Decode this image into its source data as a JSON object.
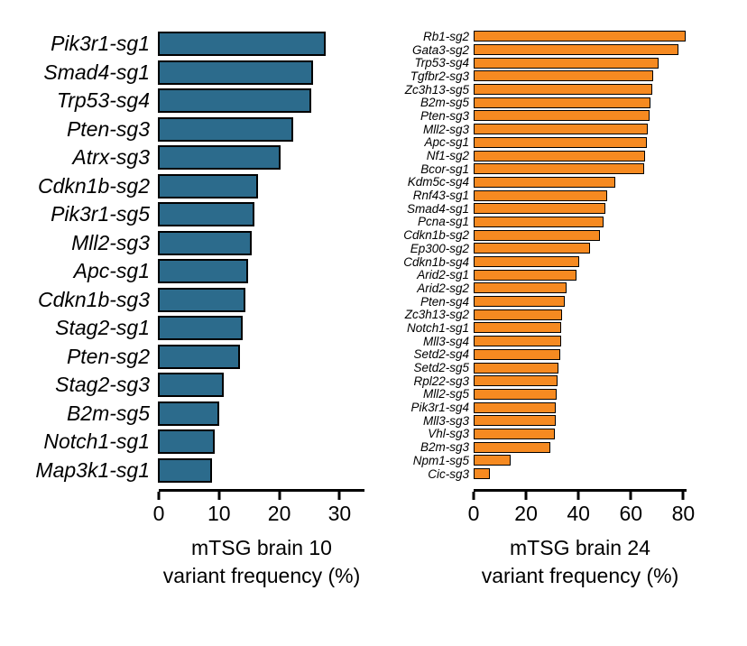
{
  "chart_data": [
    {
      "type": "bar",
      "orientation": "horizontal",
      "xlabel_line1": "mTSG brain 10",
      "xlabel_line2": "variant frequency (%)",
      "bar_color": "#2C6B8C",
      "x_ticks": [
        0,
        10,
        20,
        30
      ],
      "xlim": [
        0,
        34
      ],
      "grid": false,
      "categories": [
        "Pik3r1-sg1",
        "Smad4-sg1",
        "Trp53-sg4",
        "Pten-sg3",
        "Atrx-sg3",
        "Cdkn1b-sg2",
        "Pik3r1-sg5",
        "Mll2-sg3",
        "Apc-sg1",
        "Cdkn1b-sg3",
        "Stag2-sg1",
        "Pten-sg2",
        "Stag2-sg3",
        "B2m-sg5",
        "Notch1-sg1",
        "Map3k1-sg1"
      ],
      "values": [
        27.9,
        25.7,
        25.4,
        22.4,
        20.4,
        16.6,
        16.0,
        15.6,
        14.9,
        14.5,
        14.0,
        13.6,
        10.9,
        10.2,
        9.4,
        9.0
      ]
    },
    {
      "type": "bar",
      "orientation": "horizontal",
      "xlabel_line1": "mTSG brain 24",
      "xlabel_line2": "variant frequency (%)",
      "bar_color": "#F68A21",
      "x_ticks": [
        0,
        20,
        40,
        60,
        80
      ],
      "xlim": [
        0,
        81
      ],
      "grid": false,
      "categories": [
        "Rb1-sg2",
        "Gata3-sg2",
        "Trp53-sg4",
        "Tgfbr2-sg3",
        "Zc3h13-sg5",
        "B2m-sg5",
        "Pten-sg3",
        "Mll2-sg3",
        "Apc-sg1",
        "Nf1-sg2",
        "Bcor-sg1",
        "Kdm5c-sg4",
        "Rnf43-sg1",
        "Smad4-sg1",
        "Pcna-sg1",
        "Cdkn1b-sg2",
        "Ep300-sg2",
        "Cdkn1b-sg4",
        "Arid2-sg1",
        "Arid2-sg2",
        "Pten-sg4",
        "Zc3h13-sg2",
        "Notch1-sg1",
        "Mll3-sg4",
        "Setd2-sg4",
        "Setd2-sg5",
        "Rpl22-sg3",
        "Mll2-sg5",
        "Pik3r1-sg4",
        "Mll3-sg3",
        "Vhl-sg3",
        "B2m-sg3",
        "Npm1-sg5",
        "Cic-sg3"
      ],
      "values": [
        81,
        78,
        70.5,
        68.5,
        68,
        67.5,
        67,
        66.5,
        66,
        65.5,
        65,
        54,
        50.9,
        50.2,
        49.4,
        48.2,
        44.3,
        40.2,
        39.2,
        35.6,
        34.8,
        33.6,
        33.3,
        33.3,
        33.2,
        32.3,
        31.9,
        31.8,
        31.4,
        31.2,
        31.1,
        29.2,
        14,
        6.2
      ]
    }
  ]
}
